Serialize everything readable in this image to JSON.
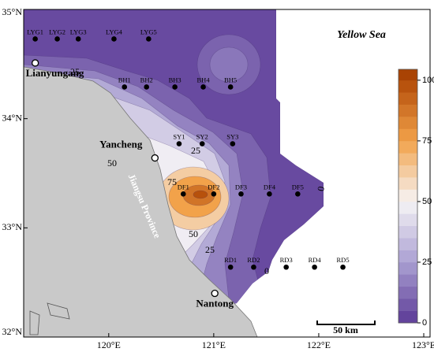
{
  "map": {
    "sea_label": "Yellow Sea",
    "province_label": "Jiangsu Province",
    "xlim": [
      119.19,
      123.06
    ],
    "ylim": [
      32,
      35
    ],
    "xticks": [
      {
        "value": 120,
        "label": "120°E"
      },
      {
        "value": 121,
        "label": "121°E"
      },
      {
        "value": 122,
        "label": "122°E"
      },
      {
        "value": 123,
        "label": "123°E"
      }
    ],
    "yticks": [
      {
        "value": 32,
        "label": "32°N"
      },
      {
        "value": 33,
        "label": "33°N"
      },
      {
        "value": 34,
        "label": "34°N"
      },
      {
        "value": 35,
        "label": "35°N"
      }
    ],
    "places": [
      {
        "label": "Lianyungang",
        "lon": 119.3,
        "lat": 34.51
      },
      {
        "label": "Yancheng",
        "lon": 120.44,
        "lat": 33.64
      },
      {
        "label": "Nantong",
        "lon": 121.01,
        "lat": 32.4
      }
    ],
    "stations": [
      {
        "label": "LYG1",
        "lon": 119.3,
        "lat": 34.73
      },
      {
        "label": "LYG2",
        "lon": 119.51,
        "lat": 34.73
      },
      {
        "label": "LYG3",
        "lon": 119.71,
        "lat": 34.73
      },
      {
        "label": "LYG4",
        "lon": 120.05,
        "lat": 34.73
      },
      {
        "label": "LYG5",
        "lon": 120.38,
        "lat": 34.73
      },
      {
        "label": "BH1",
        "lon": 120.15,
        "lat": 34.29
      },
      {
        "label": "BH2",
        "lon": 120.36,
        "lat": 34.29
      },
      {
        "label": "BH3",
        "lon": 120.63,
        "lat": 34.29
      },
      {
        "label": "BH4",
        "lon": 120.9,
        "lat": 34.29
      },
      {
        "label": "BH5",
        "lon": 121.16,
        "lat": 34.29
      },
      {
        "label": "SY1",
        "lon": 120.67,
        "lat": 33.77
      },
      {
        "label": "SY2",
        "lon": 120.89,
        "lat": 33.77
      },
      {
        "label": "SY3",
        "lon": 121.18,
        "lat": 33.77
      },
      {
        "label": "DF1",
        "lon": 120.71,
        "lat": 33.31
      },
      {
        "label": "DF2",
        "lon": 121.0,
        "lat": 33.31
      },
      {
        "label": "DF3",
        "lon": 121.26,
        "lat": 33.31
      },
      {
        "label": "DF4",
        "lon": 121.53,
        "lat": 33.31
      },
      {
        "label": "DF5",
        "lon": 121.8,
        "lat": 33.31
      },
      {
        "label": "RD1",
        "lon": 121.16,
        "lat": 32.64
      },
      {
        "label": "RD2",
        "lon": 121.38,
        "lat": 32.64
      },
      {
        "label": "RD3",
        "lon": 121.69,
        "lat": 32.64
      },
      {
        "label": "RD4",
        "lon": 121.96,
        "lat": 32.64
      },
      {
        "label": "RD5",
        "lon": 122.23,
        "lat": 32.64
      }
    ],
    "contour_labels": [
      "25",
      "25",
      "50",
      "75",
      "50",
      "25",
      "0",
      "0"
    ],
    "colorbar": {
      "clim": [
        0,
        104.5
      ],
      "ticks": [
        0,
        25,
        50,
        75,
        100
      ]
    },
    "scale_bar": "50 km"
  }
}
